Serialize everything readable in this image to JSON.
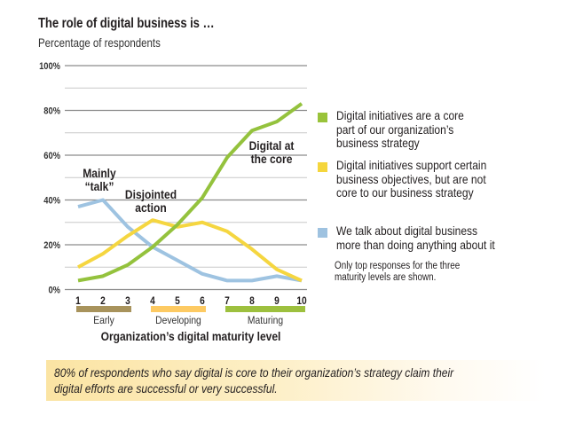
{
  "header": {
    "title": "The role of digital business is …",
    "subtitle": "Percentage of respondents"
  },
  "chart_data": {
    "type": "line",
    "title": "The role of digital business is …",
    "subtitle": "Percentage of respondents",
    "xlabel": "Organization’s digital maturity level",
    "ylabel": "Percentage of respondents",
    "ylim": [
      0,
      100
    ],
    "y_ticks": [
      "0%",
      "20%",
      "40%",
      "60%",
      "80%",
      "100%"
    ],
    "grid": true,
    "x": [
      1,
      2,
      3,
      4,
      5,
      6,
      7,
      8,
      9,
      10
    ],
    "x_ticks": [
      "1",
      "2",
      "3",
      "4",
      "5",
      "6",
      "7",
      "8",
      "9",
      "10"
    ],
    "series": [
      {
        "name": "Digital initiatives are a core part of our organization’s business strategy",
        "color": "#94c23d",
        "values": [
          4,
          6,
          11,
          19,
          29,
          41,
          59,
          71,
          75,
          83
        ]
      },
      {
        "name": "Digital initiatives support certain business objectives, but are not core to our business strategy",
        "color": "#f5d640",
        "values": [
          10,
          16,
          24,
          31,
          28,
          30,
          26,
          18,
          9,
          4
        ]
      },
      {
        "name": "We talk about digital business more than doing anything about it",
        "color": "#9ec3e1",
        "values": [
          37,
          40,
          28,
          19,
          13,
          7,
          4,
          4,
          6,
          4
        ]
      }
    ],
    "maturity_bands": [
      {
        "label": "Early",
        "range": [
          1,
          3
        ],
        "color": "#a8935c"
      },
      {
        "label": "Developing",
        "range": [
          4,
          6
        ],
        "color": "#fdca63"
      },
      {
        "label": "Maturing",
        "range": [
          7,
          10
        ],
        "color": "#9dc03e"
      }
    ],
    "annotations": [
      {
        "lines": [
          "Mainly",
          "“talk”"
        ],
        "x": 2
      },
      {
        "lines": [
          "Disjointed",
          "action"
        ],
        "x": 4
      },
      {
        "lines": [
          "Digital at",
          "the core"
        ],
        "x": 8
      }
    ],
    "legend_position": "right"
  },
  "legend": {
    "items": [
      {
        "lines": [
          "Digital initiatives are a core",
          "part of our organization’s",
          "business strategy"
        ],
        "color": "#99c33a"
      },
      {
        "lines": [
          "Digital initiatives support certain",
          "business objectives, but are not",
          "core to our business strategy"
        ],
        "color": "#f5d63d"
      },
      {
        "lines": [
          "We talk about digital business",
          "more than doing anything about it"
        ],
        "color": "#9ec2e0"
      }
    ],
    "footnote": [
      "Only top responses for the three",
      "maturity levels are shown."
    ]
  },
  "callout": {
    "lines": [
      "80% of respondents who say digital is core to their organization’s strategy claim their",
      "digital efforts are successful or very successful."
    ]
  }
}
